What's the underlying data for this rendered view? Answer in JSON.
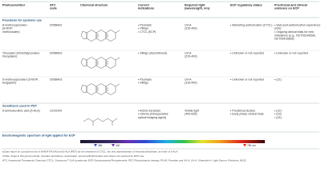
{
  "header": {
    "columns": [
      [
        "Photosensitizer"
      ],
      [
        "ATC",
        "code"
      ],
      [
        "Chemical structure"
      ],
      [
        "Current",
        "indications"
      ],
      [
        "Required light",
        "(wavelength, nm)"
      ],
      [
        "ECP regulatory status"
      ],
      [
        "Preclinical and clinical",
        "evidence on ECP"
      ]
    ]
  },
  "sections": [
    {
      "title": "Psoralens for systemic use",
      "rows": [
        {
          "name": [
            "8-methoxypsoralen",
            "(8-MOP,",
            "methoxsalen)"
          ],
          "atc": "D05BA02",
          "indications": [
            "• Psoriasis",
            "• Vitiligo",
            "• CTCL (ECP)"
          ],
          "light": [
            "UV-A",
            "(315-400)"
          ],
          "status": [
            "• Marketing authorization (CTCL)"
          ],
          "evidence": [
            "• Vast post-authorization experience",
            "(refs)",
            "• Ongoing clinical trials for new",
            "indications (e.g., NCT05146596,",
            "NCT05415683)"
          ]
        },
        {
          "name": [
            "Trioxsalen (trimethylpsoralen,",
            "trioxysalen)"
          ],
          "atc": "D05BA03",
          "indications": [
            "• Vitiligo (discontinued)"
          ],
          "light": [
            "UV-A",
            "(315-400)"
          ],
          "status": [
            "• Unknown or not reported"
          ],
          "evidence": [
            "• Unknown or not reported"
          ]
        },
        {
          "name": [
            "5-methoxypsoralen (5-MOP,",
            "bergapten)"
          ],
          "atc": "D05BA03",
          "indications": [
            "• Psoriasis",
            "• Vitiligo"
          ],
          "light": [
            "UV-A",
            "(315-400)"
          ],
          "status": [
            "• Unknown or not reported"
          ],
          "evidence": [
            "• (21)"
          ]
        }
      ]
    },
    {
      "title": "Sensitizers used in PDT",
      "rows": [
        {
          "name": [
            "5-aminolevulinic acid (5-ALA)"
          ],
          "atc": "L01XD04",
          "indications": [
            "• Actinic keratosis",
            "• Glioma (intraoperative",
            "optical imaging agent)"
          ],
          "light": [
            "Visible light",
            "(400-635)"
          ],
          "status": [
            "• Preclinical studies",
            "• Early phase clinical trials"
          ],
          "evidence": [
            "• (22)",
            "• (23)",
            "• (24)"
          ]
        }
      ]
    }
  ],
  "spectrum": {
    "title": "Electromagnetic spectrum of light applied for ECP",
    "markers": [
      "365",
      "400",
      "780 nm"
    ]
  },
  "footnotes": [
    "aCase report on concurrent use of 8-MOP (PUVA) and 5-ALA (PDT) for the treatment of CTCL.  bIn vitro administration of hexaminolevulinate, an ester of 5-ALA.",
    "cOther drugs in this group include: psoralen derivatives, amotosalen, aminomethyltrioxsalen and others not reported for ECP use.",
    "ATC, Anatomical Therapeutic Chemical; CTCL, Cutaneous T-Cell Lymphoma; ECP, Extracorporeal Photopheresis; PDT, Photodynamic therapy; PUVA, Psoralen and UV-A; UV-A, Ultraviolet A. Light Source: Pubchem; NICE."
  ]
}
